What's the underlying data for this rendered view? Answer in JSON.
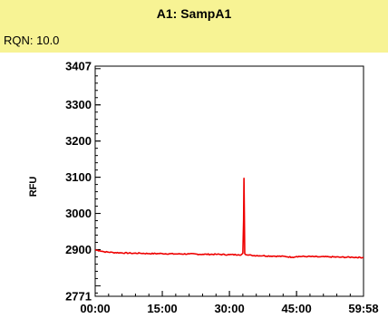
{
  "header": {
    "title": "A1: SampA1",
    "rqn": "RQN: 10.0",
    "background_color": "#f7f394"
  },
  "chart_data": {
    "type": "line",
    "title": "A1: SampA1",
    "xlabel": "",
    "ylabel": "RFU",
    "xlim": [
      0,
      3598
    ],
    "ylim": [
      2771,
      3407
    ],
    "x_ticks": [
      {
        "value": 0,
        "label": "00:00"
      },
      {
        "value": 900,
        "label": "15:00"
      },
      {
        "value": 1800,
        "label": "30:00"
      },
      {
        "value": 2700,
        "label": "45:00"
      },
      {
        "value": 3598,
        "label": "59:58"
      }
    ],
    "y_ticks": [
      {
        "value": 2771,
        "label": "2771"
      },
      {
        "value": 2900,
        "label": "2900"
      },
      {
        "value": 3000,
        "label": "3000"
      },
      {
        "value": 3100,
        "label": "3100"
      },
      {
        "value": 3200,
        "label": "3200"
      },
      {
        "value": 3300,
        "label": "3300"
      },
      {
        "value": 3407,
        "label": "3407"
      }
    ],
    "grid": false,
    "legend": "none",
    "series": [
      {
        "color": "#ee0000",
        "x": [
          0,
          60,
          120,
          240,
          360,
          480,
          600,
          720,
          900,
          1080,
          1260,
          1440,
          1620,
          1800,
          1920,
          1960,
          1980,
          1990,
          1995,
          2000,
          2005,
          2010,
          2020,
          2040,
          2100,
          2250,
          2400,
          2550,
          2640,
          2700,
          2850,
          3000,
          3150,
          3300,
          3450,
          3598
        ],
        "y": [
          2899,
          2897,
          2894,
          2892,
          2891,
          2890,
          2890,
          2889,
          2889,
          2888,
          2888,
          2887,
          2887,
          2886,
          2886,
          2886,
          2890,
          2980,
          3097,
          3000,
          2890,
          2887,
          2886,
          2885,
          2884,
          2883,
          2882,
          2881,
          2879,
          2881,
          2881,
          2880,
          2880,
          2879,
          2879,
          2878
        ]
      }
    ]
  }
}
